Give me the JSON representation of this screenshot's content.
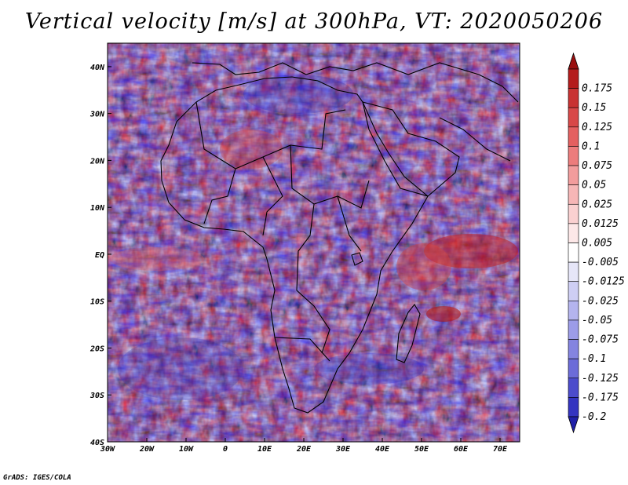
{
  "title": "Vertical velocity [m/s] at 300hPa, VT: 2020050206",
  "credit": "GrADS: IGES/COLA",
  "map": {
    "lon_range": [
      -30,
      75
    ],
    "lat_range": [
      -40,
      45
    ],
    "lon_ticks": [
      {
        "lon": -30,
        "label": "30W"
      },
      {
        "lon": -20,
        "label": "20W"
      },
      {
        "lon": -10,
        "label": "10W"
      },
      {
        "lon": 0,
        "label": "0"
      },
      {
        "lon": 10,
        "label": "10E"
      },
      {
        "lon": 20,
        "label": "20E"
      },
      {
        "lon": 30,
        "label": "30E"
      },
      {
        "lon": 40,
        "label": "40E"
      },
      {
        "lon": 50,
        "label": "50E"
      },
      {
        "lon": 60,
        "label": "60E"
      },
      {
        "lon": 70,
        "label": "70E"
      }
    ],
    "lat_ticks": [
      {
        "lat": 40,
        "label": "40N"
      },
      {
        "lat": 30,
        "label": "30N"
      },
      {
        "lat": 20,
        "label": "20N"
      },
      {
        "lat": 10,
        "label": "10N"
      },
      {
        "lat": 0,
        "label": "EQ"
      },
      {
        "lat": -10,
        "label": "10S"
      },
      {
        "lat": -20,
        "label": "20S"
      },
      {
        "lat": -30,
        "label": "30S"
      },
      {
        "lat": -40,
        "label": "40S"
      }
    ],
    "outline_color": "#000000"
  },
  "colorbar": {
    "levels": [
      {
        "label": "0.175",
        "color": "#b41c1c"
      },
      {
        "label": "0.15",
        "color": "#c83232"
      },
      {
        "label": "0.125",
        "color": "#d84848"
      },
      {
        "label": "0.1",
        "color": "#e46060"
      },
      {
        "label": "0.075",
        "color": "#ec7c7c"
      },
      {
        "label": "0.05",
        "color": "#f29c9c"
      },
      {
        "label": "0.025",
        "color": "#f6b6b6"
      },
      {
        "label": "0.0125",
        "color": "#fad0d0"
      },
      {
        "label": "0.005",
        "color": "#fde8e8"
      },
      {
        "label": "-0.005",
        "color": "#ffffff"
      },
      {
        "label": "-0.0125",
        "color": "#e6e6f8"
      },
      {
        "label": "-0.025",
        "color": "#ceceF4"
      },
      {
        "label": "-0.05",
        "color": "#b4b4ee"
      },
      {
        "label": "-0.075",
        "color": "#9c9ce8"
      },
      {
        "label": "-0.1",
        "color": "#8484e0"
      },
      {
        "label": "-0.125",
        "color": "#6c6cd8"
      },
      {
        "label": "-0.175",
        "color": "#4c4ccc"
      },
      {
        "label": "-0.2",
        "color": "#3434c0"
      }
    ],
    "top_arrow_color": "#9a1010",
    "bottom_arrow_color": "#2020a8"
  }
}
